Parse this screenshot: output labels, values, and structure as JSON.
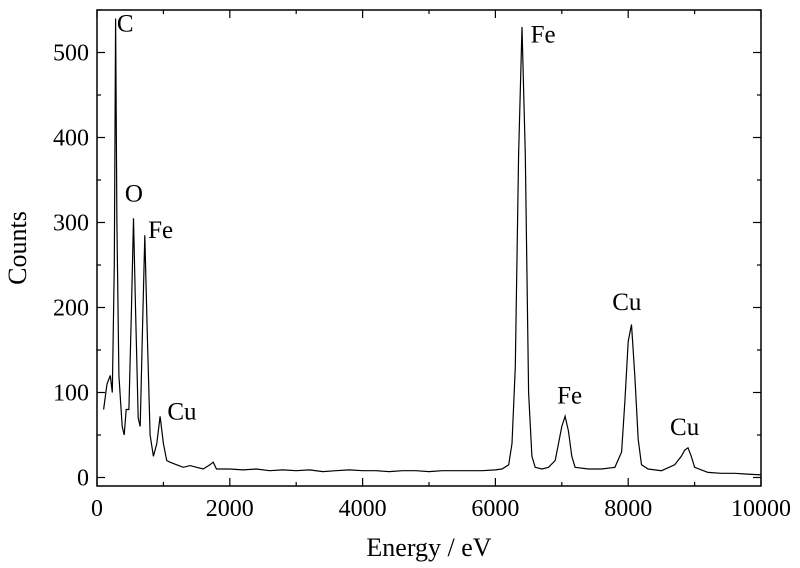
{
  "chart_data": {
    "type": "line",
    "xlabel": "Energy / eV",
    "ylabel": "Counts",
    "xlim": [
      0,
      10000
    ],
    "ylim": [
      -10,
      550
    ],
    "x_ticks": [
      0,
      2000,
      4000,
      6000,
      8000,
      10000
    ],
    "y_ticks": [
      0,
      100,
      200,
      300,
      400,
      500
    ],
    "grid": false,
    "series": [
      {
        "values": [
          [
            100,
            80
          ],
          [
            150,
            110
          ],
          [
            200,
            120
          ],
          [
            230,
            100
          ],
          [
            260,
            250
          ],
          [
            280,
            540
          ],
          [
            300,
            300
          ],
          [
            330,
            120
          ],
          [
            380,
            60
          ],
          [
            410,
            50
          ],
          [
            440,
            80
          ],
          [
            480,
            80
          ],
          [
            520,
            200
          ],
          [
            550,
            305
          ],
          [
            580,
            200
          ],
          [
            620,
            70
          ],
          [
            650,
            60
          ],
          [
            680,
            160
          ],
          [
            720,
            285
          ],
          [
            760,
            160
          ],
          [
            800,
            50
          ],
          [
            850,
            25
          ],
          [
            900,
            40
          ],
          [
            950,
            72
          ],
          [
            1000,
            40
          ],
          [
            1050,
            20
          ],
          [
            1100,
            18
          ],
          [
            1200,
            15
          ],
          [
            1300,
            12
          ],
          [
            1400,
            14
          ],
          [
            1500,
            12
          ],
          [
            1600,
            10
          ],
          [
            1700,
            15
          ],
          [
            1750,
            18
          ],
          [
            1800,
            10
          ],
          [
            2000,
            10
          ],
          [
            2200,
            9
          ],
          [
            2400,
            10
          ],
          [
            2600,
            8
          ],
          [
            2800,
            9
          ],
          [
            3000,
            8
          ],
          [
            3200,
            9
          ],
          [
            3400,
            7
          ],
          [
            3600,
            8
          ],
          [
            3800,
            9
          ],
          [
            4000,
            8
          ],
          [
            4200,
            8
          ],
          [
            4400,
            7
          ],
          [
            4600,
            8
          ],
          [
            4800,
            8
          ],
          [
            5000,
            7
          ],
          [
            5200,
            8
          ],
          [
            5400,
            8
          ],
          [
            5600,
            8
          ],
          [
            5800,
            8
          ],
          [
            6000,
            9
          ],
          [
            6100,
            10
          ],
          [
            6200,
            15
          ],
          [
            6250,
            40
          ],
          [
            6300,
            130
          ],
          [
            6350,
            380
          ],
          [
            6400,
            530
          ],
          [
            6450,
            380
          ],
          [
            6500,
            100
          ],
          [
            6550,
            25
          ],
          [
            6600,
            12
          ],
          [
            6700,
            10
          ],
          [
            6800,
            12
          ],
          [
            6900,
            20
          ],
          [
            6950,
            40
          ],
          [
            7000,
            60
          ],
          [
            7050,
            72
          ],
          [
            7100,
            55
          ],
          [
            7150,
            25
          ],
          [
            7200,
            12
          ],
          [
            7400,
            10
          ],
          [
            7600,
            10
          ],
          [
            7800,
            12
          ],
          [
            7900,
            30
          ],
          [
            7950,
            90
          ],
          [
            8000,
            160
          ],
          [
            8050,
            180
          ],
          [
            8100,
            120
          ],
          [
            8150,
            45
          ],
          [
            8200,
            15
          ],
          [
            8300,
            10
          ],
          [
            8500,
            8
          ],
          [
            8700,
            15
          ],
          [
            8800,
            25
          ],
          [
            8850,
            32
          ],
          [
            8900,
            35
          ],
          [
            8950,
            25
          ],
          [
            9000,
            12
          ],
          [
            9200,
            6
          ],
          [
            9400,
            5
          ],
          [
            9600,
            5
          ],
          [
            9800,
            4
          ],
          [
            10000,
            3
          ]
        ]
      }
    ],
    "annotations": [
      {
        "text": "C",
        "x": 300,
        "y": 525
      },
      {
        "text": "O",
        "x": 420,
        "y": 325
      },
      {
        "text": "Fe",
        "x": 770,
        "y": 282
      },
      {
        "text": "Cu",
        "x": 1060,
        "y": 68
      },
      {
        "text": "Fe",
        "x": 6530,
        "y": 512
      },
      {
        "text": "Fe",
        "x": 6930,
        "y": 87
      },
      {
        "text": "Cu",
        "x": 7760,
        "y": 197
      },
      {
        "text": "Cu",
        "x": 8630,
        "y": 50
      }
    ]
  }
}
